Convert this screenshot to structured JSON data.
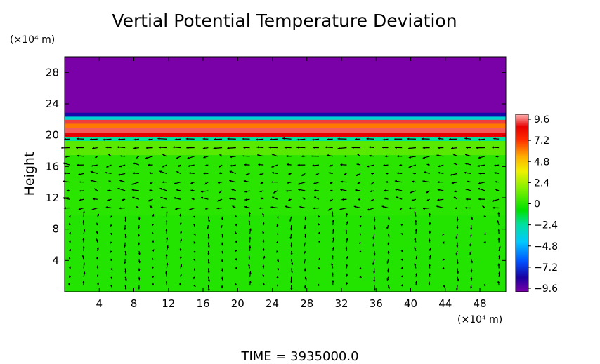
{
  "chart_data": {
    "type": "heatmap",
    "title": "Vertial Potential Temperature Deviation",
    "ylabel": "Height",
    "y_unit": "(×10⁴ m)",
    "x_unit": "(×10⁴ m)",
    "footer": "TIME  =  3935000.0",
    "xlim": [
      0,
      51
    ],
    "ylim": [
      0,
      30
    ],
    "x_ticks": [
      "4",
      "8",
      "12",
      "16",
      "20",
      "24",
      "28",
      "32",
      "36",
      "40",
      "44",
      "48"
    ],
    "y_ticks": [
      "4",
      "8",
      "12",
      "16",
      "20",
      "24",
      "28"
    ],
    "colorbar": {
      "ticks": [
        "9.6",
        "7.2",
        "4.8",
        "2.4",
        "0",
        "−2.4",
        "−4.8",
        "−7.2",
        "−9.6"
      ],
      "range": [
        -9.6,
        9.6
      ]
    },
    "field": {
      "background": 0.4,
      "layers": [
        {
          "from": 0,
          "to": 9.8,
          "value": 0.6
        },
        {
          "from": 9.8,
          "to": 17.5,
          "value": 0.8
        },
        {
          "from": 17.5,
          "to": 19.3,
          "value": 1.8
        },
        {
          "from": 19.3,
          "to": 19.8,
          "value": -2.0
        },
        {
          "from": 19.8,
          "to": 20.3,
          "value": 8.4
        },
        {
          "from": 20.3,
          "to": 21.0,
          "value": 9.0
        },
        {
          "from": 21.0,
          "to": 21.5,
          "value": 6.2
        },
        {
          "from": 21.5,
          "to": 22.0,
          "value": 8.8
        },
        {
          "from": 22.0,
          "to": 22.4,
          "value": -3.0
        },
        {
          "from": 22.4,
          "to": 22.9,
          "value": -7.8
        },
        {
          "from": 22.9,
          "to": 30,
          "value": -9.6
        }
      ]
    },
    "vectors": "wind field (arrows) on regular grid"
  }
}
